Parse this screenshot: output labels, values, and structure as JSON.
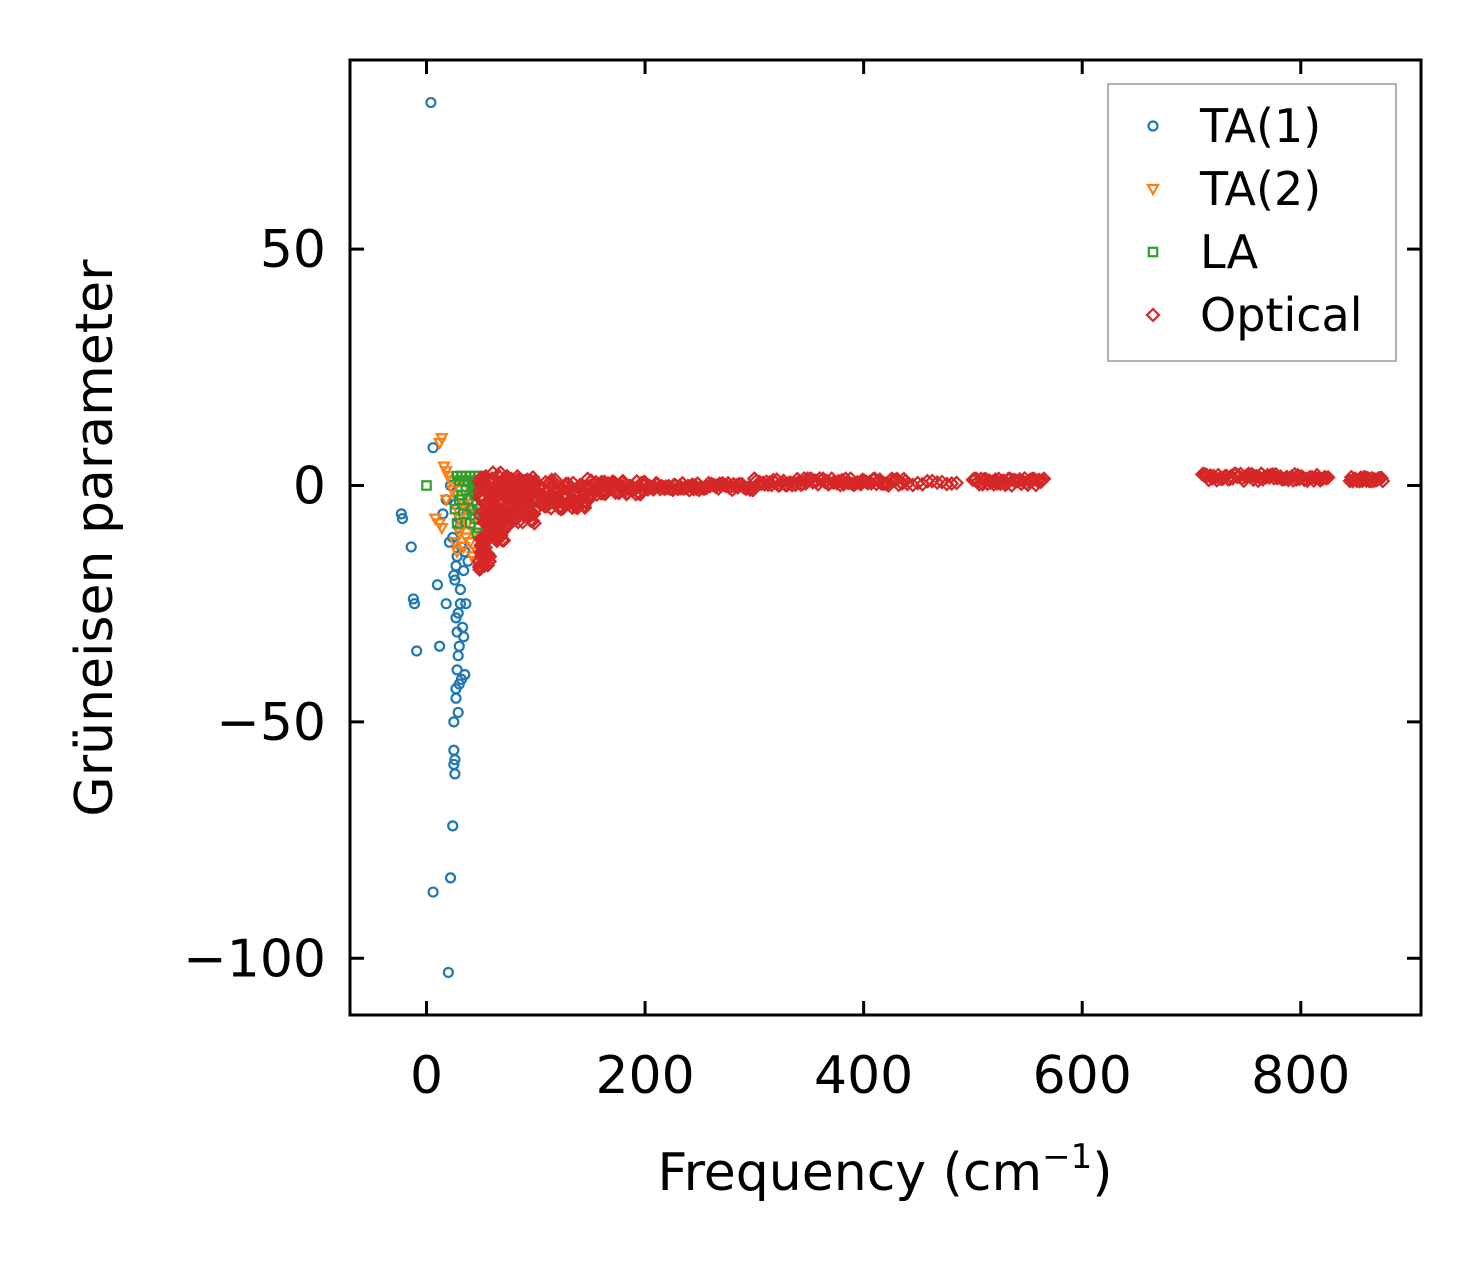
{
  "chart_data": {
    "type": "scatter",
    "title": "",
    "xlabel": "Frequency (cm",
    "xlabel_superscript": "−1",
    "xlabel_suffix": ")",
    "ylabel": "Grüneisen parameter",
    "xlim": [
      -70,
      910
    ],
    "ylim": [
      -112,
      90
    ],
    "xticks": [
      0,
      200,
      400,
      600,
      800
    ],
    "xtick_labels": [
      "0",
      "200",
      "400",
      "600",
      "800"
    ],
    "yticks": [
      50,
      0,
      -50,
      -100
    ],
    "ytick_labels": [
      "50",
      "0",
      "−50",
      "−100"
    ],
    "grid": false,
    "legend_position": "top-right",
    "series": [
      {
        "name": "TA(1)",
        "color": "#1f77b4",
        "marker": "circle-open",
        "points": [
          [
            4,
            81
          ],
          [
            6,
            8
          ],
          [
            -23,
            -6
          ],
          [
            -22,
            -7
          ],
          [
            -14,
            -13
          ],
          [
            -12,
            -24
          ],
          [
            -11,
            -25
          ],
          [
            -9,
            -35
          ],
          [
            6,
            -86
          ],
          [
            10,
            -21
          ],
          [
            12,
            -34
          ],
          [
            15,
            -6
          ],
          [
            18,
            -25
          ],
          [
            20,
            -103
          ],
          [
            21,
            -12
          ],
          [
            22,
            -83
          ],
          [
            24,
            -72
          ],
          [
            25,
            -19
          ],
          [
            25,
            -50
          ],
          [
            25,
            -56
          ],
          [
            25,
            -59
          ],
          [
            26,
            -61
          ],
          [
            26,
            -58
          ],
          [
            26,
            -20
          ],
          [
            27,
            -17
          ],
          [
            27,
            -43
          ],
          [
            27,
            -28
          ],
          [
            28,
            -15
          ],
          [
            28,
            -31
          ],
          [
            28,
            -39
          ],
          [
            29,
            -36
          ],
          [
            29,
            -48
          ],
          [
            30,
            -34
          ],
          [
            30,
            -42
          ],
          [
            30,
            -9
          ],
          [
            31,
            -25
          ],
          [
            32,
            -13
          ],
          [
            32,
            -41
          ],
          [
            33,
            -4
          ],
          [
            34,
            -18
          ],
          [
            34,
            -32
          ],
          [
            35,
            -40
          ],
          [
            36,
            -25
          ],
          [
            37,
            -6
          ],
          [
            38,
            -16
          ],
          [
            40,
            -5
          ],
          [
            22,
            0
          ],
          [
            18,
            -3
          ],
          [
            26,
            -4
          ],
          [
            31,
            -22
          ],
          [
            33,
            -30
          ],
          [
            27,
            -45
          ],
          [
            29,
            -27
          ],
          [
            35,
            -14
          ],
          [
            24,
            -11
          ],
          [
            30,
            -7
          ]
        ]
      },
      {
        "name": "TA(2)",
        "color": "#ff7f0e",
        "marker": "triangle-down-open",
        "points": [
          [
            14,
            10
          ],
          [
            12,
            9
          ],
          [
            16,
            4
          ],
          [
            18,
            3
          ],
          [
            20,
            2
          ],
          [
            8,
            -7
          ],
          [
            12,
            -8
          ],
          [
            14,
            -9
          ],
          [
            18,
            -3
          ],
          [
            22,
            1
          ],
          [
            24,
            -1
          ],
          [
            26,
            -2
          ],
          [
            28,
            -5
          ],
          [
            30,
            -7
          ],
          [
            32,
            -9
          ],
          [
            34,
            -4
          ],
          [
            36,
            -2
          ],
          [
            38,
            0
          ],
          [
            40,
            -12
          ],
          [
            42,
            -15
          ],
          [
            44,
            -16
          ],
          [
            44,
            -10
          ],
          [
            46,
            -14
          ],
          [
            46,
            -6
          ],
          [
            34,
            -13
          ],
          [
            36,
            -11
          ],
          [
            30,
            1
          ],
          [
            32,
            2
          ],
          [
            38,
            -8
          ],
          [
            40,
            -3
          ],
          [
            42,
            -1
          ],
          [
            44,
            0
          ],
          [
            46,
            1
          ],
          [
            48,
            -2
          ],
          [
            48,
            -17
          ],
          [
            26,
            -12
          ],
          [
            28,
            -14
          ],
          [
            36,
            -5
          ],
          [
            40,
            2
          ],
          [
            30,
            -10
          ]
        ]
      },
      {
        "name": "LA",
        "color": "#2ca02c",
        "marker": "square-open",
        "points": [
          [
            0,
            0
          ],
          [
            28,
            2
          ],
          [
            30,
            1
          ],
          [
            32,
            2
          ],
          [
            34,
            1
          ],
          [
            36,
            2
          ],
          [
            38,
            1
          ],
          [
            40,
            2
          ],
          [
            42,
            1
          ],
          [
            44,
            2
          ],
          [
            46,
            1
          ],
          [
            48,
            2
          ],
          [
            50,
            1
          ],
          [
            44,
            -2
          ],
          [
            46,
            -4
          ],
          [
            48,
            -6
          ],
          [
            50,
            -3
          ],
          [
            42,
            -5
          ],
          [
            40,
            -8
          ],
          [
            38,
            -3
          ],
          [
            36,
            -1
          ],
          [
            34,
            -6
          ],
          [
            48,
            -9
          ],
          [
            50,
            -12
          ],
          [
            46,
            -10
          ],
          [
            44,
            -7
          ],
          [
            26,
            -5
          ],
          [
            28,
            -8
          ],
          [
            30,
            -3
          ],
          [
            32,
            -2
          ],
          [
            50,
            0
          ],
          [
            48,
            -1
          ],
          [
            46,
            0
          ],
          [
            44,
            0
          ],
          [
            42,
            -1
          ]
        ]
      },
      {
        "name": "Optical",
        "color": "#d62728",
        "marker": "diamond-open",
        "bands": [
          {
            "x_start": 48,
            "x_end": 58,
            "y_low": -18,
            "y_high": 2,
            "count": 70
          },
          {
            "x_start": 58,
            "x_end": 75,
            "y_low": -12,
            "y_high": 3,
            "count": 80
          },
          {
            "x_start": 75,
            "x_end": 100,
            "y_low": -8,
            "y_high": 2,
            "count": 80
          },
          {
            "x_start": 100,
            "x_end": 150,
            "y_low": -5,
            "y_high": 1.5,
            "count": 80
          },
          {
            "x_start": 150,
            "x_end": 200,
            "y_low": -2,
            "y_high": 1,
            "count": 60
          },
          {
            "x_start": 200,
            "x_end": 300,
            "y_low": -1,
            "y_high": 0.5,
            "count": 80
          },
          {
            "x_start": 300,
            "x_end": 440,
            "y_low": 0,
            "y_high": 1.5,
            "count": 90
          },
          {
            "x_start": 445,
            "x_end": 485,
            "y_low": 0,
            "y_high": 1,
            "count": 10
          },
          {
            "x_start": 500,
            "x_end": 565,
            "y_low": 0,
            "y_high": 1.5,
            "count": 45
          },
          {
            "x_start": 710,
            "x_end": 825,
            "y_low": 1,
            "y_high": 2.5,
            "count": 80
          },
          {
            "x_start": 845,
            "x_end": 875,
            "y_low": 0.8,
            "y_high": 1.8,
            "count": 25
          }
        ]
      }
    ]
  }
}
